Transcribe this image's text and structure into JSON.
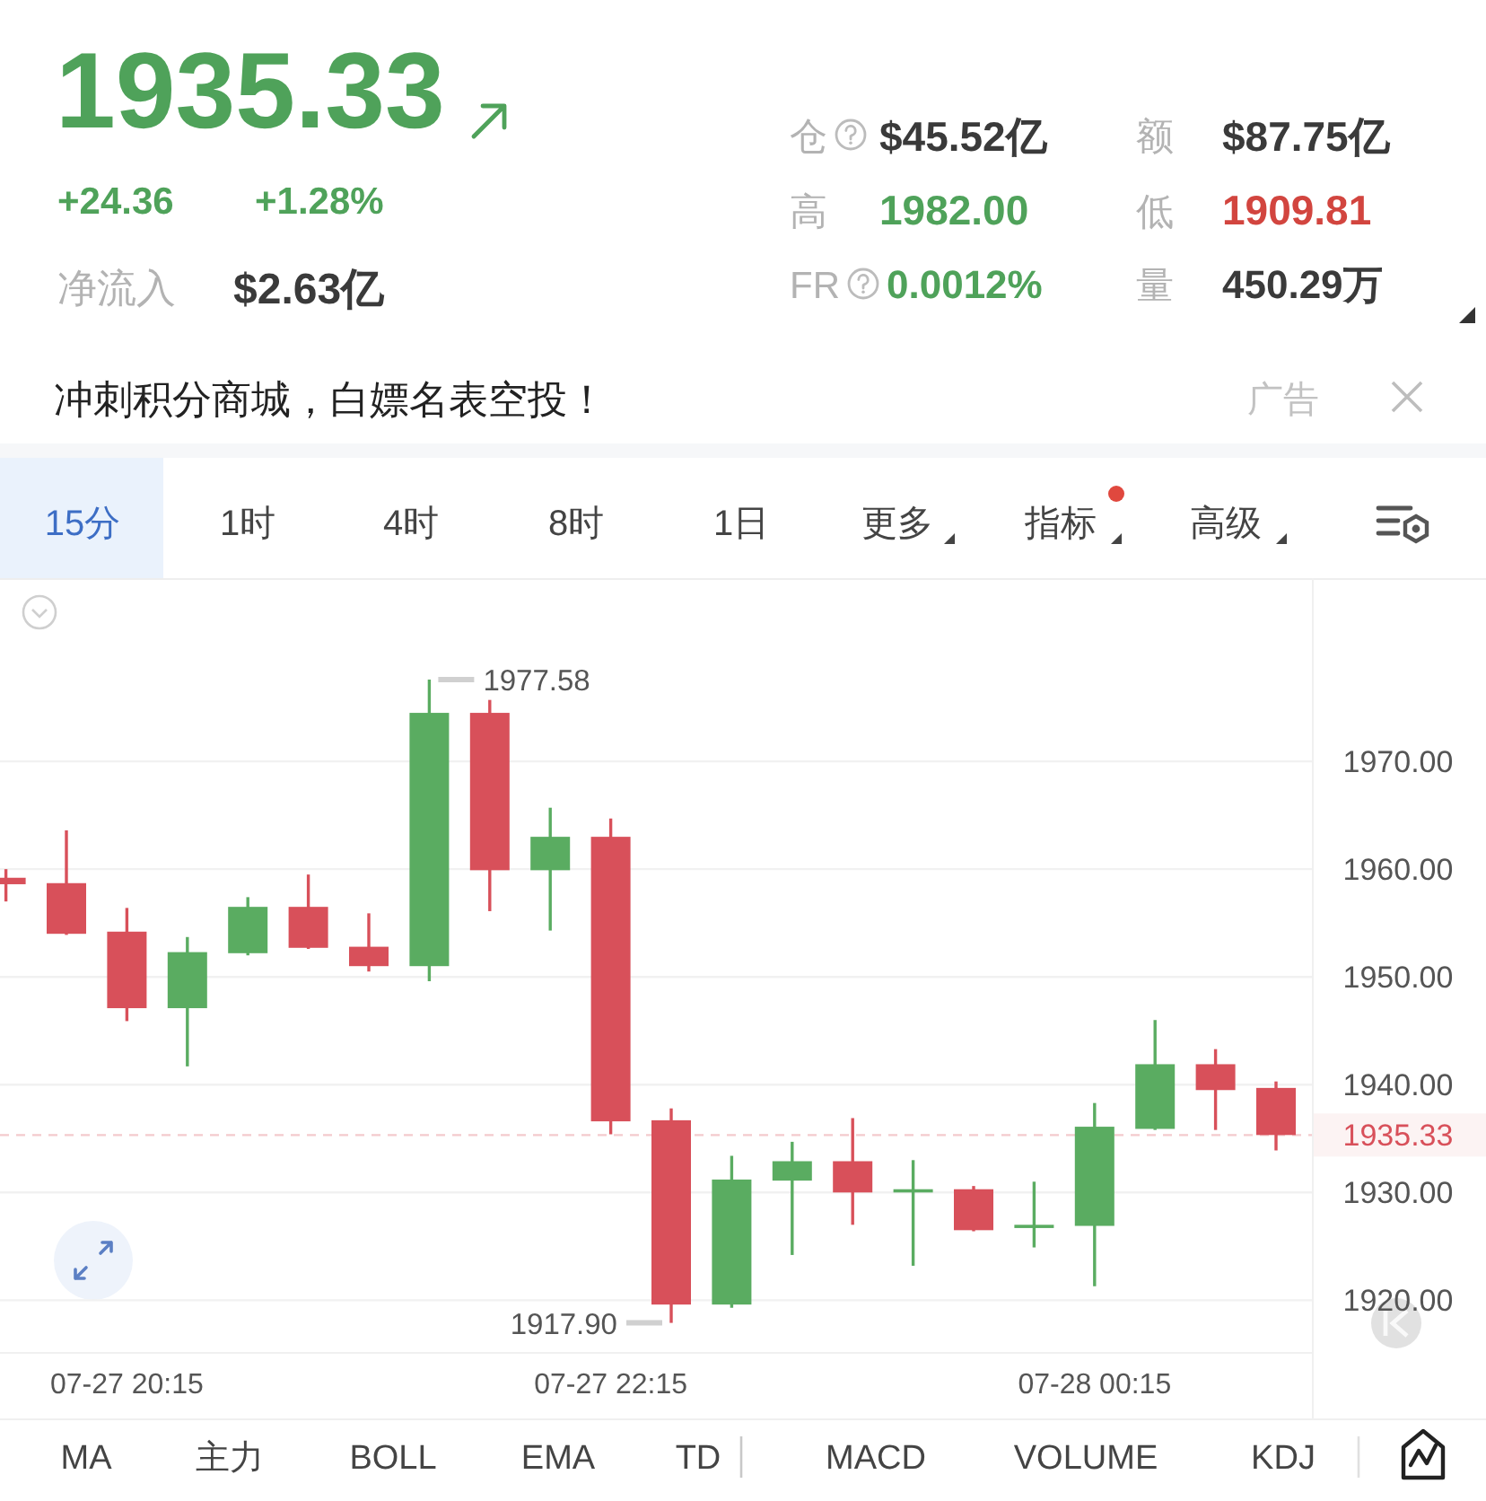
{
  "chart_data": {
    "type": "candlestick",
    "title": "1935.33",
    "categories": [
      null,
      null,
      "07-27 20:15",
      null,
      null,
      null,
      null,
      null,
      null,
      null,
      "07-27 22:15",
      null,
      null,
      null,
      null,
      null,
      null,
      null,
      "07-28 00:15",
      null,
      null,
      null
    ],
    "ohlc": [
      [
        1959.2,
        1960.0,
        1957.0,
        1958.6
      ],
      [
        1958.7,
        1963.6,
        1953.9,
        1954.0
      ],
      [
        1954.2,
        1956.4,
        1945.9,
        1947.1
      ],
      [
        1947.1,
        1953.7,
        1941.7,
        1952.3
      ],
      [
        1952.2,
        1957.4,
        1952.0,
        1956.5
      ],
      [
        1956.5,
        1959.5,
        1952.6,
        1952.7
      ],
      [
        1952.8,
        1955.9,
        1950.5,
        1951.0
      ],
      [
        1951.0,
        1977.58,
        1949.6,
        1974.5
      ],
      [
        1974.5,
        1975.7,
        1956.1,
        1959.9
      ],
      [
        1959.9,
        1965.7,
        1954.3,
        1963.0
      ],
      [
        1963.0,
        1964.7,
        1935.4,
        1936.6
      ],
      [
        1936.7,
        1937.8,
        1917.9,
        1919.6
      ],
      [
        1919.6,
        1933.4,
        1919.3,
        1931.2
      ],
      [
        1931.1,
        1934.7,
        1924.2,
        1932.9
      ],
      [
        1932.9,
        1936.9,
        1927.0,
        1930.0
      ],
      [
        1930.0,
        1933.0,
        1923.2,
        1930.3
      ],
      [
        1930.3,
        1930.6,
        1926.4,
        1926.5
      ],
      [
        1926.7,
        1931.0,
        1924.9,
        1927.0
      ],
      [
        1926.9,
        1938.3,
        1921.3,
        1936.1
      ],
      [
        1935.9,
        1946.0,
        1935.8,
        1941.9
      ],
      [
        1941.9,
        1943.3,
        1935.8,
        1939.5
      ],
      [
        1939.7,
        1940.3,
        1933.9,
        1935.33
      ]
    ],
    "colors": [
      "#d8505a",
      "#d8505a",
      "#d8505a",
      "#5aac61",
      "#5aac61",
      "#d8505a",
      "#d8505a",
      "#5aac61",
      "#d8505a",
      "#5aac61",
      "#d8505a",
      "#d8505a",
      "#5aac61",
      "#5aac61",
      "#d8505a",
      "#5aac61",
      "#d8505a",
      "#5aac61",
      "#5aac61",
      "#5aac61",
      "#d8505a",
      "#d8505a"
    ],
    "ylim": [
      1915.2,
      1987.0
    ],
    "yticks": [
      {
        "value": 1920,
        "label": "1920.00"
      },
      {
        "value": 1930,
        "label": "1930.00"
      },
      {
        "value": 1940,
        "label": "1940.00"
      },
      {
        "value": 1950,
        "label": "1950.00"
      },
      {
        "value": 1960,
        "label": "1960.00"
      },
      {
        "value": 1970,
        "label": "1970.00"
      }
    ],
    "grid": "y",
    "ref_lines": [
      {
        "axis": "y",
        "value": 1935.33,
        "label": "1935.33",
        "color": "#d8505a",
        "line_style": "dashed"
      }
    ],
    "annotations": [
      "1977.58",
      "1917.90",
      "+24.36",
      "+1.28%",
      "净流入",
      "$2.63亿",
      "仓",
      "$45.52亿",
      "额",
      "$87.75亿",
      "高",
      "1982.00",
      "低",
      "1909.81",
      "FR",
      "0.0012%",
      "量",
      "450.29万",
      "冲刺积分商城，白嫖名表空投！",
      "广告",
      "15分",
      "1时",
      "4时",
      "8时",
      "1日",
      "更多",
      "指标",
      "高级",
      "MA",
      "主力",
      "BOLL",
      "EMA",
      "TD",
      "MACD",
      "VOLUME",
      "KDJ"
    ]
  }
}
